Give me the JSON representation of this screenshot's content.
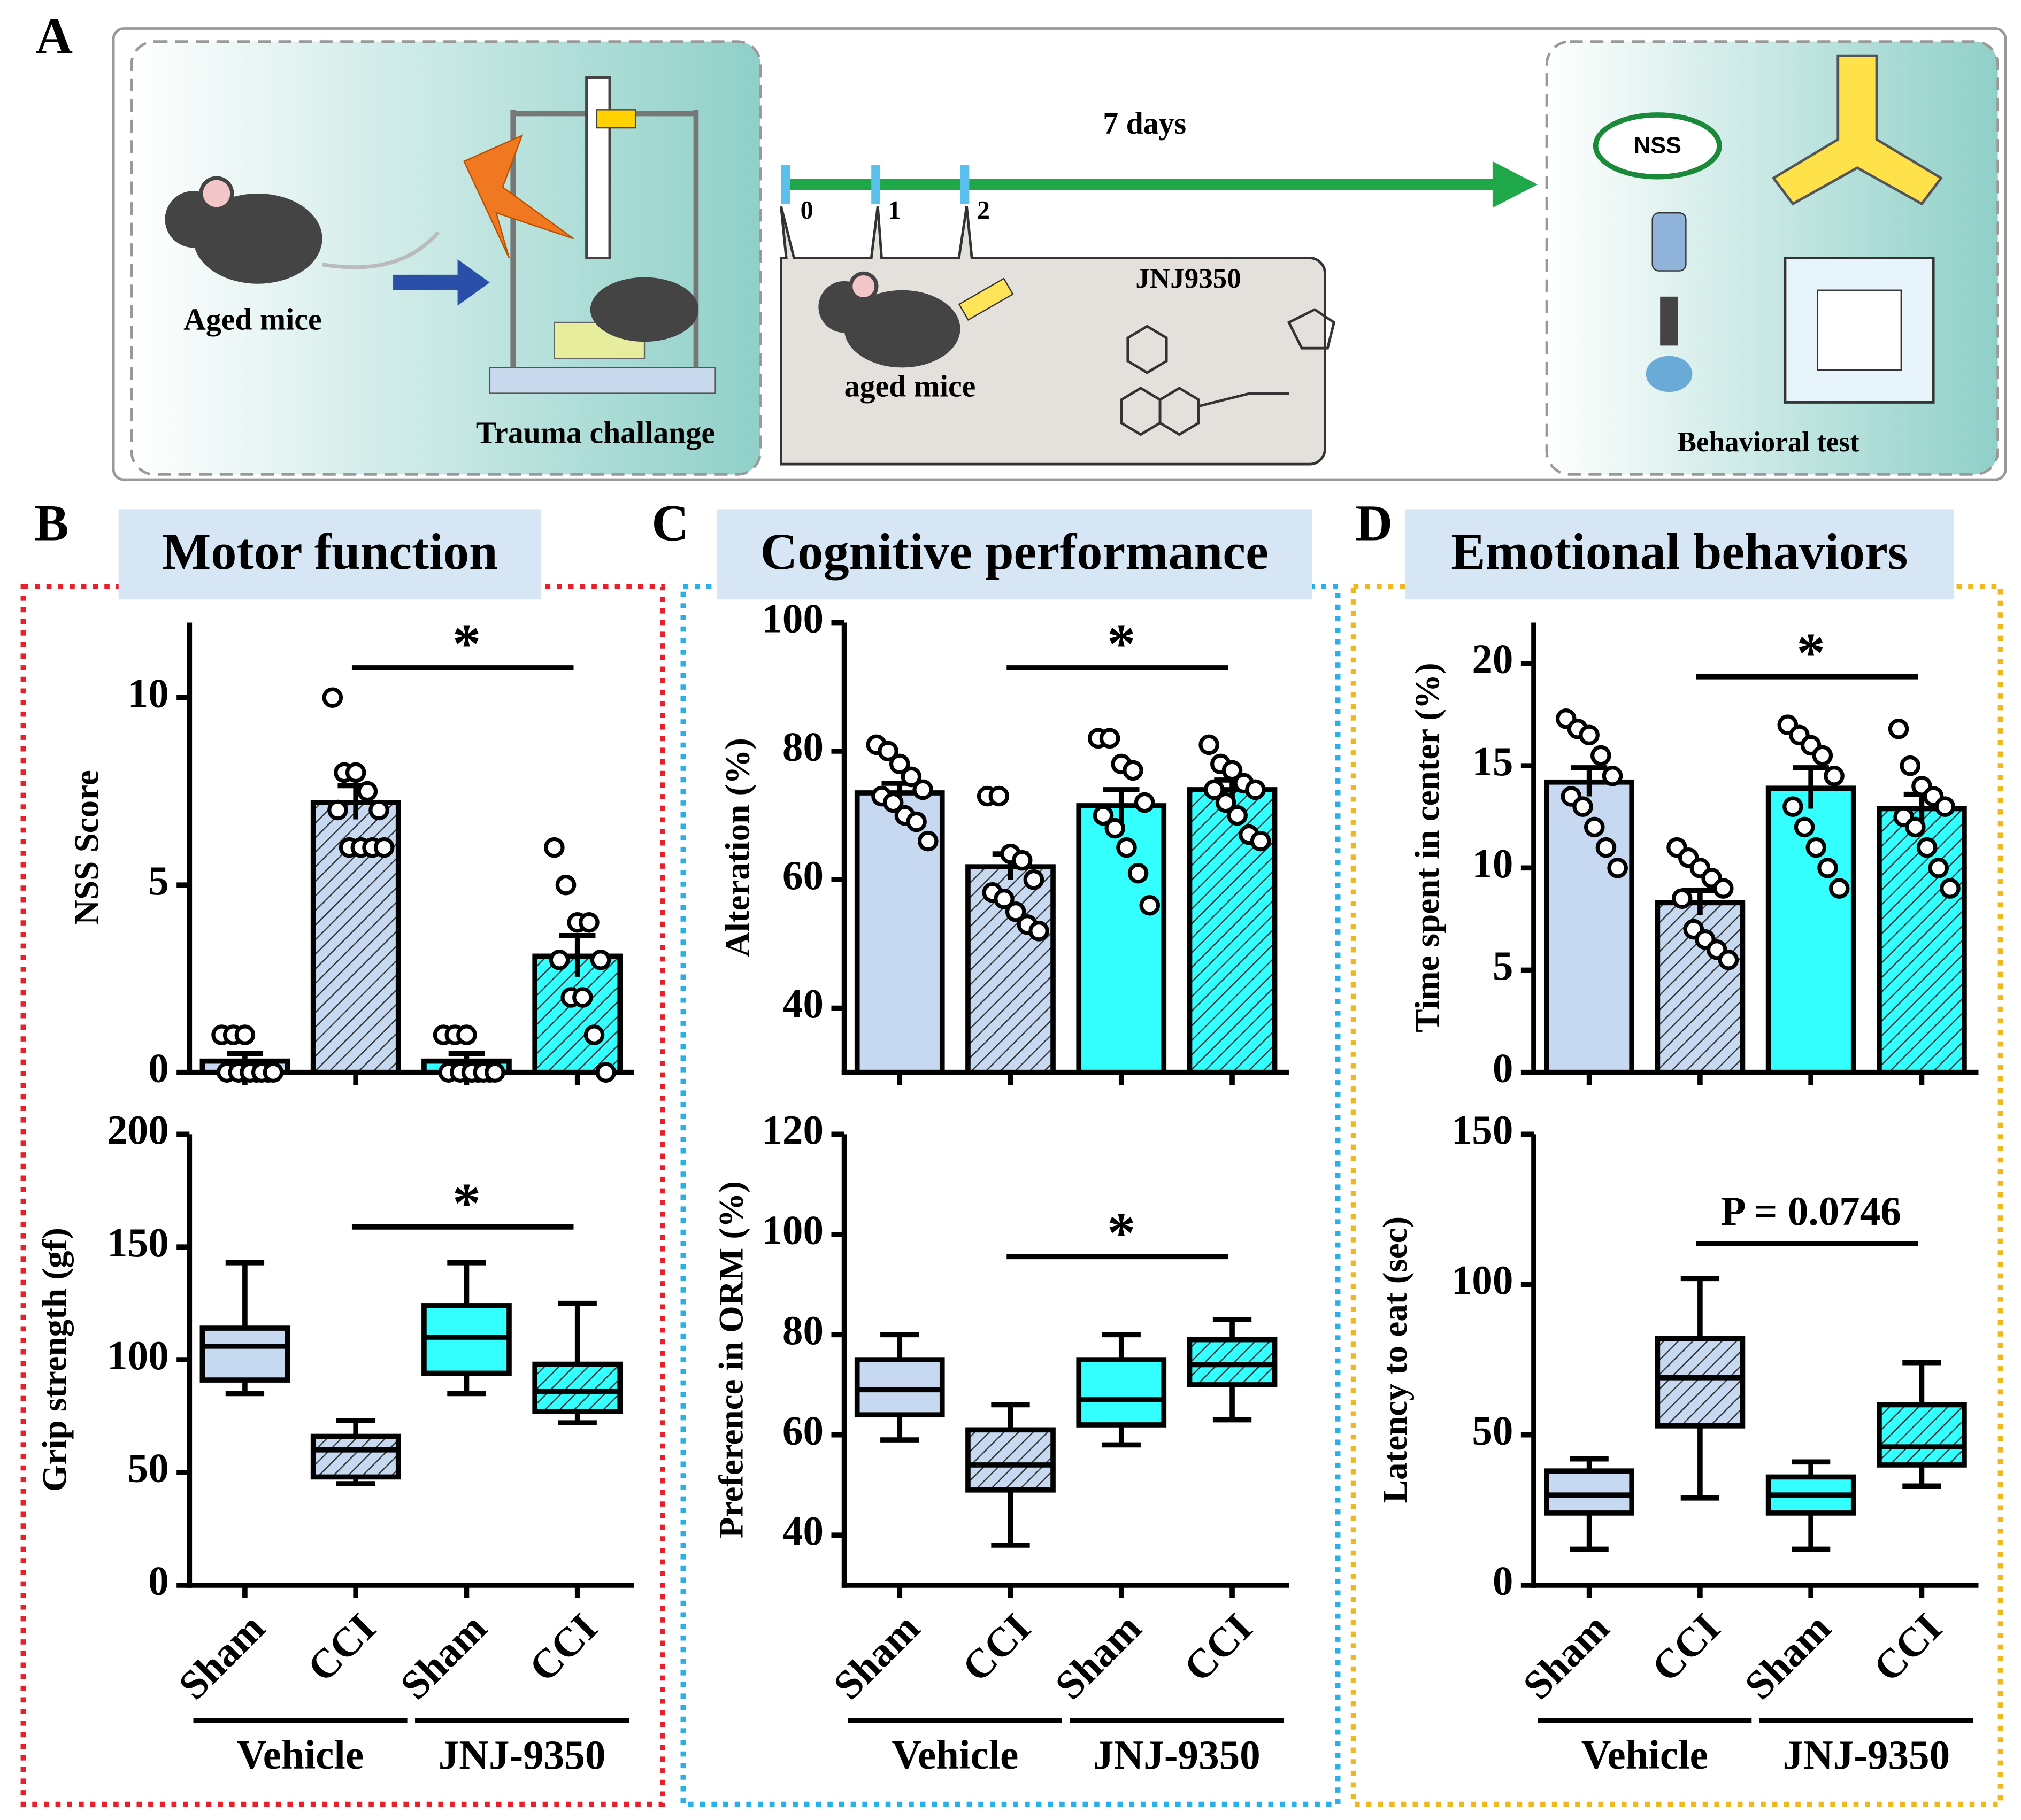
{
  "panel_labels": [
    "A",
    "B",
    "C",
    "D"
  ],
  "diagram": {
    "aged_mice": "Aged mice",
    "trauma": "Trauma challange",
    "duration": "7 days",
    "days": [
      "0",
      "1",
      "2"
    ],
    "drug": "JNJ9350",
    "aged_mice_treated": "aged mice",
    "nss": "NSS",
    "behavioral": "Behavioral test"
  },
  "sections": [
    "Motor function",
    "Cognitive performance",
    "Emotional behaviors"
  ],
  "chart_data": [
    {
      "type": "bar",
      "y_label": "NSS Score",
      "ylim": [
        0,
        12
      ],
      "yticks": [
        0,
        5,
        10
      ],
      "categories": [
        null,
        null,
        null,
        null
      ],
      "values": [
        0.3,
        7.2,
        0.3,
        3.1
      ],
      "errors": [
        0.2,
        0.45,
        0.2,
        0.55
      ],
      "points": [
        [
          1,
          1,
          1,
          0,
          0,
          0,
          0,
          0,
          0,
          0
        ],
        [
          10,
          8,
          8,
          7.5,
          7,
          7,
          6,
          6,
          6,
          6
        ],
        [
          1,
          1,
          1,
          0,
          0,
          0,
          0,
          0,
          0,
          0
        ],
        [
          6,
          5,
          4,
          4,
          3,
          3,
          2,
          2,
          1,
          0
        ]
      ],
      "colors": [
        "#c6d9f1",
        "#c6d9f1",
        "#33ffff",
        "#33ffff"
      ],
      "hatched": [
        false,
        true,
        false,
        true
      ],
      "annotation": "*"
    },
    {
      "type": "box",
      "y_label": "Grip strength (gf)",
      "ylim": [
        0,
        200
      ],
      "yticks": [
        0,
        50,
        100,
        150,
        200
      ],
      "categories": [
        "Sham",
        "CCI",
        "Sham",
        "CCI"
      ],
      "groups": [
        "Vehicle",
        "JNJ-9350"
      ],
      "boxes": [
        {
          "min": 85,
          "q1": 91,
          "median": 106,
          "q3": 114,
          "max": 143
        },
        {
          "min": 45,
          "q1": 48,
          "median": 60,
          "q3": 66,
          "max": 73
        },
        {
          "min": 85,
          "q1": 94,
          "median": 110,
          "q3": 124,
          "max": 143
        },
        {
          "min": 72,
          "q1": 77,
          "median": 86,
          "q3": 98,
          "max": 125
        }
      ],
      "colors": [
        "#c6d9f1",
        "#c6d9f1",
        "#33ffff",
        "#33ffff"
      ],
      "hatched": [
        false,
        true,
        false,
        true
      ],
      "annotation": "*"
    },
    {
      "type": "bar",
      "y_label": "Alteration (%)",
      "ylim": [
        30,
        100
      ],
      "yticks": [
        40,
        60,
        80,
        100
      ],
      "categories": [
        null,
        null,
        null,
        null
      ],
      "values": [
        73.5,
        62,
        71.5,
        74
      ],
      "errors": [
        1.5,
        2,
        2.5,
        1.5
      ],
      "points": [
        [
          81,
          80,
          78,
          76,
          74,
          73,
          72,
          70,
          69,
          66
        ],
        [
          73,
          73,
          64,
          63,
          60,
          58,
          57,
          55,
          53,
          52
        ],
        [
          82,
          82,
          78,
          77,
          72,
          70,
          68,
          65,
          61,
          56
        ],
        [
          81,
          78,
          77,
          75,
          74,
          74,
          72,
          70,
          67,
          66
        ]
      ],
      "colors": [
        "#c6d9f1",
        "#c6d9f1",
        "#33ffff",
        "#33ffff"
      ],
      "hatched": [
        false,
        true,
        false,
        true
      ],
      "annotation": "*"
    },
    {
      "type": "box",
      "y_label": "Preference in ORM (%)",
      "ylim": [
        30,
        120
      ],
      "yticks": [
        40,
        60,
        80,
        100,
        120
      ],
      "categories": [
        "Sham",
        "CCI",
        "Sham",
        "CCI"
      ],
      "groups": [
        "Vehicle",
        "JNJ-9350"
      ],
      "boxes": [
        {
          "min": 59,
          "q1": 64,
          "median": 69,
          "q3": 75,
          "max": 80
        },
        {
          "min": 38,
          "q1": 49,
          "median": 54,
          "q3": 61,
          "max": 66
        },
        {
          "min": 58,
          "q1": 62,
          "median": 67,
          "q3": 75,
          "max": 80
        },
        {
          "min": 63,
          "q1": 70,
          "median": 74,
          "q3": 79,
          "max": 83
        }
      ],
      "colors": [
        "#c6d9f1",
        "#c6d9f1",
        "#33ffff",
        "#33ffff"
      ],
      "hatched": [
        false,
        true,
        false,
        true
      ],
      "annotation": "*"
    },
    {
      "type": "bar",
      "y_label": "Time spent in center (%)",
      "ylim": [
        0,
        22
      ],
      "yticks": [
        0,
        5,
        10,
        15,
        20
      ],
      "categories": [
        null,
        null,
        null,
        null
      ],
      "values": [
        14.2,
        8.3,
        13.9,
        12.9
      ],
      "errors": [
        0.7,
        0.6,
        1,
        0.7
      ],
      "points": [
        [
          17.3,
          16.8,
          16.5,
          15.5,
          14.5,
          13.5,
          13,
          12,
          11,
          10
        ],
        [
          11,
          10.5,
          10,
          9.5,
          9,
          8.5,
          7,
          6.5,
          6,
          5.5
        ],
        [
          17,
          16.5,
          16,
          15.5,
          14.5,
          13,
          12,
          11,
          10,
          9
        ],
        [
          16.8,
          15,
          14,
          13.5,
          13,
          12.5,
          12,
          11,
          10,
          9
        ]
      ],
      "colors": [
        "#c6d9f1",
        "#c6d9f1",
        "#33ffff",
        "#33ffff"
      ],
      "hatched": [
        false,
        true,
        false,
        true
      ],
      "annotation": "*"
    },
    {
      "type": "box",
      "y_label": "Latency to eat (sec)",
      "ylim": [
        0,
        150
      ],
      "yticks": [
        0,
        50,
        100,
        150
      ],
      "categories": [
        "Sham",
        "CCI",
        "Sham",
        "CCI"
      ],
      "groups": [
        "Vehicle",
        "JNJ-9350"
      ],
      "boxes": [
        {
          "min": 12,
          "q1": 24,
          "median": 30,
          "q3": 38,
          "max": 42
        },
        {
          "min": 29,
          "q1": 53,
          "median": 69,
          "q3": 82,
          "max": 102
        },
        {
          "min": 12,
          "q1": 24,
          "median": 30,
          "q3": 36,
          "max": 41
        },
        {
          "min": 33,
          "q1": 40,
          "median": 46,
          "q3": 60,
          "max": 74
        }
      ],
      "colors": [
        "#c6d9f1",
        "#c6d9f1",
        "#33ffff",
        "#33ffff"
      ],
      "hatched": [
        false,
        true,
        false,
        true
      ],
      "annotation": "P = 0.0746"
    }
  ]
}
